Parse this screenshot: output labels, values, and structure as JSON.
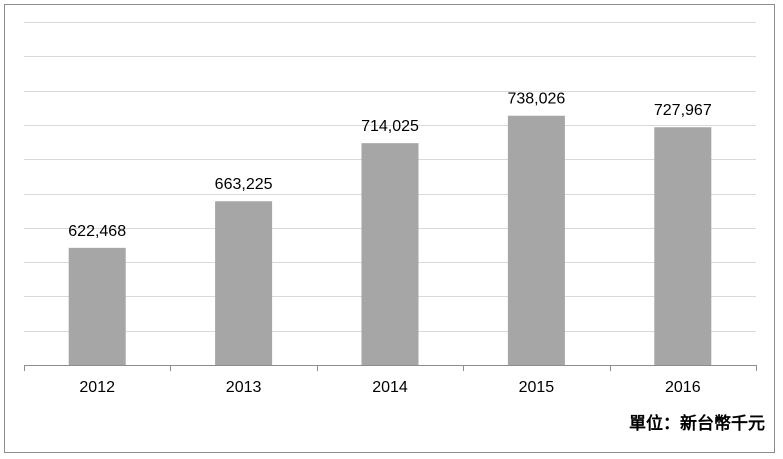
{
  "chart_data": {
    "type": "bar",
    "categories": [
      "2012",
      "2013",
      "2014",
      "2015",
      "2016"
    ],
    "values": [
      622468,
      663225,
      714025,
      738026,
      727967
    ],
    "data_labels": [
      "622,468",
      "663,225",
      "714,025",
      "738,026",
      "727,967"
    ],
    "title": "",
    "xlabel": "",
    "ylabel": "",
    "ylim": [
      520000,
      820000
    ],
    "grid": true,
    "legend": "none",
    "unit_note": "單位：新台幣千元"
  },
  "colors": {
    "bar": "#a6a6a6",
    "grid": "#d9d9d9",
    "axis": "#8c8c8c",
    "text": "#000000"
  }
}
